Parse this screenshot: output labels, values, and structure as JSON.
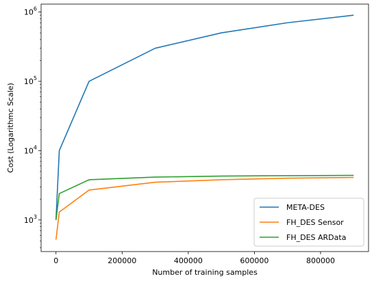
{
  "chart_data": {
    "type": "line",
    "title": "",
    "xlabel": "Number of training samples",
    "ylabel": "Cost (Logarithmc Scale)",
    "xlim": [
      -45000,
      945000
    ],
    "ylim": [
      350,
      1300000
    ],
    "yscale": "log",
    "grid": false,
    "legend_position": "lower right",
    "x_ticks": [
      0,
      200000,
      400000,
      600000,
      800000
    ],
    "x_tick_labels": [
      "0",
      "200000",
      "400000",
      "600000",
      "800000"
    ],
    "y_ticks": [
      1000,
      10000,
      100000,
      1000000
    ],
    "y_tick_labels": [
      "10",
      "10",
      "10",
      "10"
    ],
    "y_tick_exponents": [
      "3",
      "4",
      "5",
      "6"
    ],
    "series": [
      {
        "name": "META-DES",
        "color": "#1f77b4",
        "x": [
          0,
          10000,
          100000,
          300000,
          500000,
          700000,
          900000
        ],
        "y": [
          1000,
          10000,
          100000,
          300000,
          500000,
          700000,
          900000
        ]
      },
      {
        "name": "FH_DES Sensor",
        "color": "#ff7f0e",
        "x": [
          0,
          10000,
          100000,
          300000,
          500000,
          700000,
          900000
        ],
        "y": [
          520,
          1300,
          2700,
          3500,
          3800,
          4000,
          4100
        ]
      },
      {
        "name": "FH_DES ARData",
        "color": "#2ca02c",
        "x": [
          0,
          10000,
          100000,
          300000,
          500000,
          700000,
          900000
        ],
        "y": [
          1000,
          2400,
          3800,
          4150,
          4300,
          4350,
          4400
        ]
      }
    ]
  }
}
